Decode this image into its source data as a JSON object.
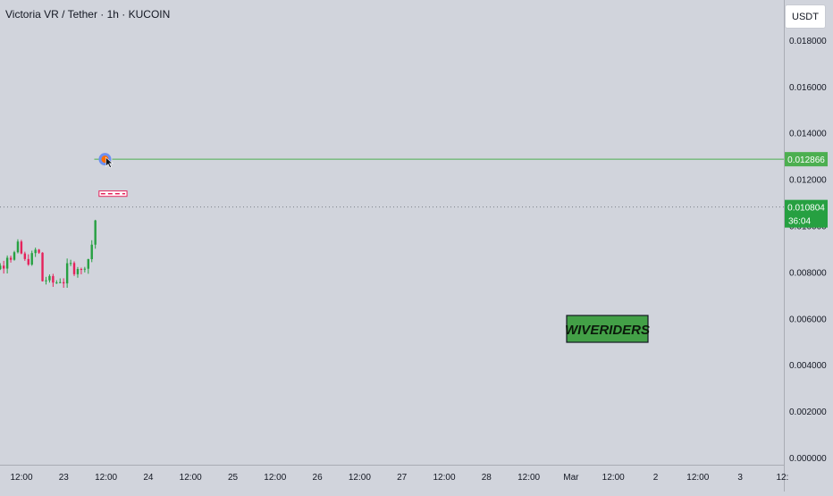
{
  "header": {
    "title": "Victoria VR / Tether · 1h · KUCOIN",
    "currency": "USDT"
  },
  "colors": {
    "background": "#d1d4dc",
    "up": "#26a041",
    "down": "#e5225b",
    "target_line": "#4caf50",
    "price_line": "#7c7f88",
    "watermark_bg": "#43a047",
    "resistance": "#e5225b"
  },
  "chart_data": {
    "type": "candlestick",
    "symbol": "Victoria VR / Tether",
    "interval": "1h",
    "exchange": "KUCOIN",
    "ylim": [
      0,
      0.0195
    ],
    "y_ticks": [
      "0.018000",
      "0.016000",
      "0.014000",
      "0.012000",
      "0.010000",
      "0.008000",
      "0.006000",
      "0.004000",
      "0.002000",
      "0.000000"
    ],
    "x_ticks": [
      "12:00",
      "23",
      "12:00",
      "24",
      "12:00",
      "25",
      "12:00",
      "26",
      "12:00",
      "27",
      "12:00",
      "28",
      "12:00",
      "Mar",
      "12:00",
      "2",
      "12:00",
      "3",
      "12:"
    ],
    "price_path_anchors": [
      [
        0,
        0.00825
      ],
      [
        0.03,
        0.0082
      ],
      [
        0.06,
        0.008
      ],
      [
        0.09,
        0.0074
      ],
      [
        0.11,
        0.0072
      ],
      [
        0.16,
        0.008
      ],
      [
        0.22,
        0.0083
      ],
      [
        0.28,
        0.0082
      ],
      [
        0.33,
        0.0088
      ],
      [
        0.4,
        0.0086
      ],
      [
        0.44,
        0.009
      ],
      [
        0.48,
        0.0092
      ],
      [
        0.52,
        0.0084
      ],
      [
        0.58,
        0.0085
      ],
      [
        0.62,
        0.0086
      ],
      [
        0.66,
        0.0089
      ],
      [
        0.7,
        0.009
      ],
      [
        0.72,
        0.0085
      ],
      [
        0.74,
        0.0076
      ],
      [
        0.78,
        0.0077
      ],
      [
        0.85,
        0.0076
      ],
      [
        0.9,
        0.0075
      ],
      [
        0.95,
        0.0077
      ],
      [
        1.0,
        0.0076
      ],
      [
        1.06,
        0.0084
      ],
      [
        1.12,
        0.0081
      ],
      [
        1.18,
        0.0083
      ],
      [
        1.22,
        0.0079
      ],
      [
        1.26,
        0.0085
      ],
      [
        1.3,
        0.0086
      ],
      [
        1.34,
        0.0093
      ],
      [
        1.37,
        0.0101
      ],
      [
        1.4,
        0.0108
      ]
    ],
    "current_price": "0.010804",
    "countdown": "36:04",
    "target_price": "0.012866",
    "target_value": 0.012866,
    "current_value": 0.010804,
    "resistance_value": 0.01138,
    "resistance_range_days": [
      1.42,
      1.75
    ],
    "target_start_day": 1.49,
    "watermark": "WIVERIDERS"
  }
}
